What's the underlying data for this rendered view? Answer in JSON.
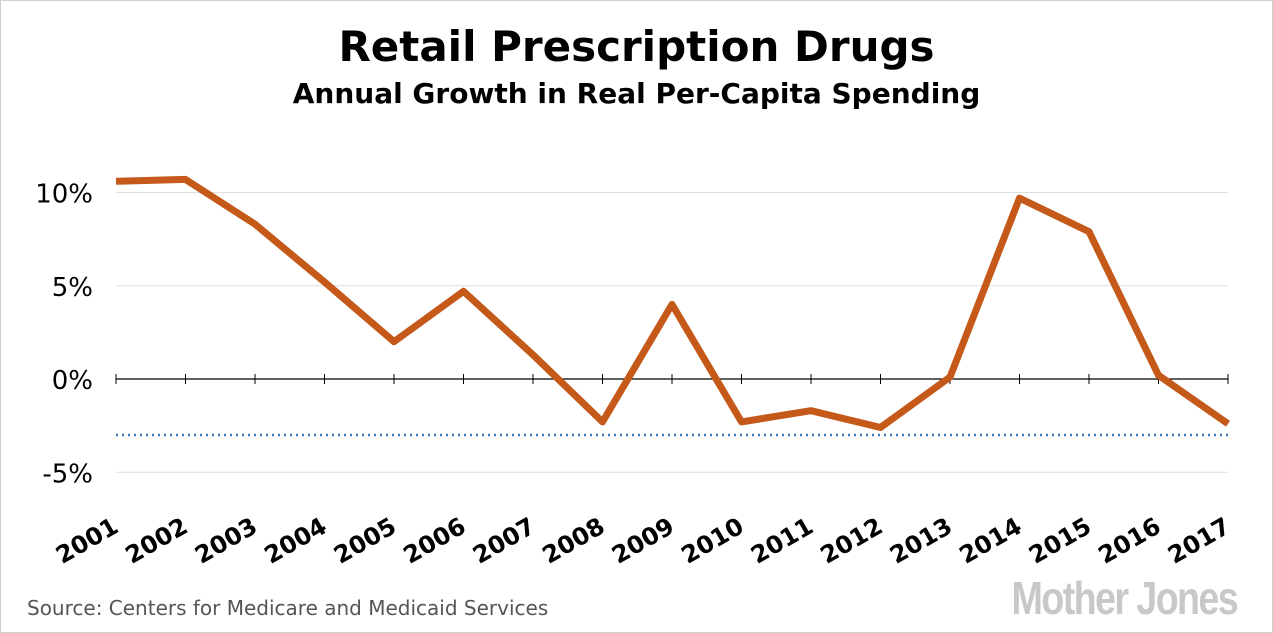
{
  "chart_data": {
    "type": "line",
    "title": "Retail Prescription Drugs",
    "subtitle": "Annual Growth in Real Per-Capita Spending",
    "x": [
      "2001",
      "2002",
      "2003",
      "2004",
      "2005",
      "2006",
      "2007",
      "2008",
      "2009",
      "2010",
      "2011",
      "2012",
      "2013",
      "2014",
      "2015",
      "2016",
      "2017"
    ],
    "series": [
      {
        "values": [
          10.6,
          10.7,
          8.3,
          5.2,
          2.0,
          4.7,
          1.3,
          -2.3,
          4.0,
          -2.3,
          -1.7,
          -2.6,
          0.1,
          9.7,
          7.9,
          0.2,
          -2.4
        ],
        "color": "#c4591a"
      }
    ],
    "reference_line": {
      "value": -3.0,
      "style": "dotted",
      "color": "#3a7bb8"
    },
    "y_ticks": [
      10,
      5,
      0,
      -5
    ],
    "y_tick_labels": [
      "10%",
      "5%",
      "0%",
      "-5%"
    ],
    "ylim": [
      -5,
      10
    ],
    "grid": true,
    "xlabel": "",
    "ylabel": ""
  },
  "source": "Source: Centers for Medicare and Medicaid Services",
  "logo": "MotherJones"
}
